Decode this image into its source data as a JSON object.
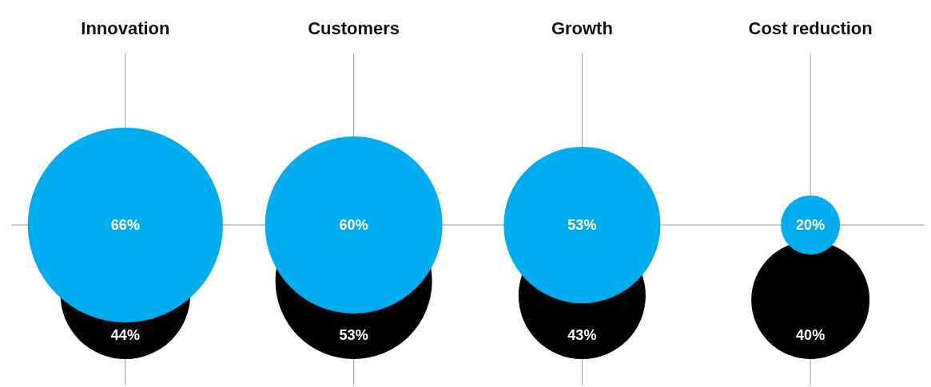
{
  "chart_data": {
    "type": "other",
    "categories": [
      "Innovation",
      "Customers",
      "Growth",
      "Cost reduction"
    ],
    "series": [
      {
        "color": "#000000",
        "values": [
          44,
          53,
          43,
          40
        ],
        "value_labels": [
          "44%",
          "53%",
          "43%",
          "40%"
        ]
      },
      {
        "color": "#00adef",
        "values": [
          66,
          60,
          53,
          20
        ],
        "value_labels": [
          "66%",
          "60%",
          "53%",
          "20%"
        ]
      }
    ]
  }
}
